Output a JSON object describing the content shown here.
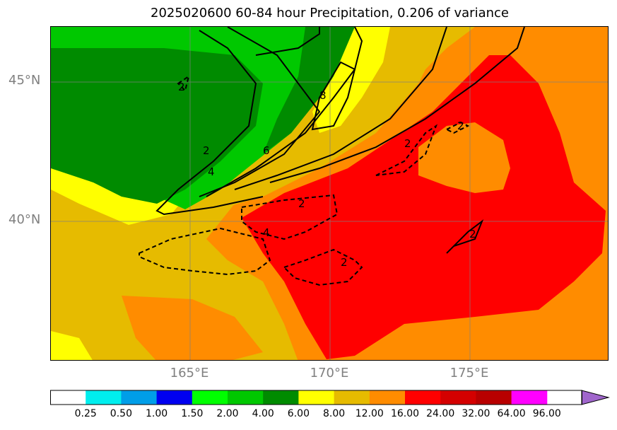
{
  "title": "2025020600 60-84 hour Precipitation, 0.206 of variance",
  "map": {
    "lat_labels": [
      "45°N",
      "40°N"
    ],
    "lon_labels": [
      "165°E",
      "170°E",
      "175°E"
    ],
    "contour_labels": [
      "2",
      "4",
      "6",
      "8",
      "2",
      "2",
      "2",
      "4",
      "2",
      "2",
      "2"
    ],
    "fill_colors": {
      "green_dark": "#008b00",
      "green": "#00c800",
      "yellow": "#ffff00",
      "gold": "#e6bb00",
      "orange": "#ff8c00",
      "red": "#ff0000"
    },
    "grid": true
  },
  "colorbar": {
    "colors": [
      "#ffffff",
      "#00eeee",
      "#009ee8",
      "#0000f0",
      "#00ff00",
      "#00c800",
      "#008b00",
      "#ffff00",
      "#e6bb00",
      "#ff8c00",
      "#ff0000",
      "#d40000",
      "#b80000",
      "#ff00ff",
      "#a066cc"
    ],
    "labels": [
      "0.25",
      "0.50",
      "1.00",
      "1.50",
      "2.00",
      "4.00",
      "6.00",
      "8.00",
      "12.00",
      "16.00",
      "24.00",
      "32.00",
      "64.00",
      "96.00"
    ]
  }
}
